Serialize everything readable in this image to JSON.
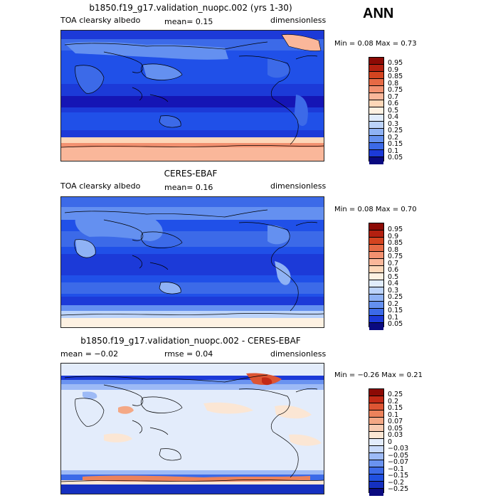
{
  "season": "ANN",
  "colors": {
    "p1": [
      "#0a0a80",
      "#1515b5",
      "#1c3ad8",
      "#2050e8",
      "#3c6ae8",
      "#6490f0",
      "#8fb2f5",
      "#bcd3fa",
      "#e0ecfc",
      "#fdf1e2",
      "#fdd7b8",
      "#fab79a",
      "#f29170",
      "#e66a45",
      "#d44420",
      "#b32010",
      "#8c0a05"
    ],
    "diff": [
      "#0a0a80",
      "#1530c0",
      "#2050e0",
      "#3c6ae8",
      "#6a93f0",
      "#9dbaf6",
      "#c9dafa",
      "#e3ecfb",
      "#fbe6d4",
      "#f8cbb1",
      "#f4a885",
      "#ec825b",
      "#dd5533",
      "#c32a16",
      "#8c0a05"
    ]
  },
  "panels": [
    {
      "title": "b1850.f19_g17.validation_nuopc.002 (yrs 1-30)",
      "left_label": "TOA clearsky albedo",
      "center_label": "mean=   0.15",
      "right_label": "dimensionless",
      "minmax": "Min =    0.08  Max =    0.73",
      "levels": [
        "0.95",
        "0.9",
        "0.85",
        "0.8",
        "0.75",
        "0.7",
        "0.6",
        "0.5",
        "0.4",
        "0.3",
        "0.25",
        "0.2",
        "0.15",
        "0.1",
        "0.05"
      ]
    },
    {
      "title": "CERES-EBAF",
      "left_label": "TOA clearsky albedo",
      "center_label": "mean=   0.16",
      "right_label": "dimensionless",
      "minmax": "Min =    0.08  Max =    0.70",
      "levels": [
        "0.95",
        "0.9",
        "0.85",
        "0.8",
        "0.75",
        "0.7",
        "0.6",
        "0.5",
        "0.4",
        "0.3",
        "0.25",
        "0.2",
        "0.15",
        "0.1",
        "0.05"
      ]
    },
    {
      "title": "b1850.f19_g17.validation_nuopc.002 - CERES-EBAF",
      "left_label": "mean =   −0.02",
      "center_label": "rmse =   0.04",
      "right_label": "dimensionless",
      "minmax": "Min =   −0.26  Max =    0.21",
      "levels": [
        "0.25",
        "0.2",
        "0.15",
        "0.1",
        "0.07",
        "0.05",
        "0.03",
        "0",
        "−0.03",
        "−0.05",
        "−0.07",
        "−0.1",
        "−0.15",
        "−0.2",
        "−0.25"
      ]
    }
  ]
}
